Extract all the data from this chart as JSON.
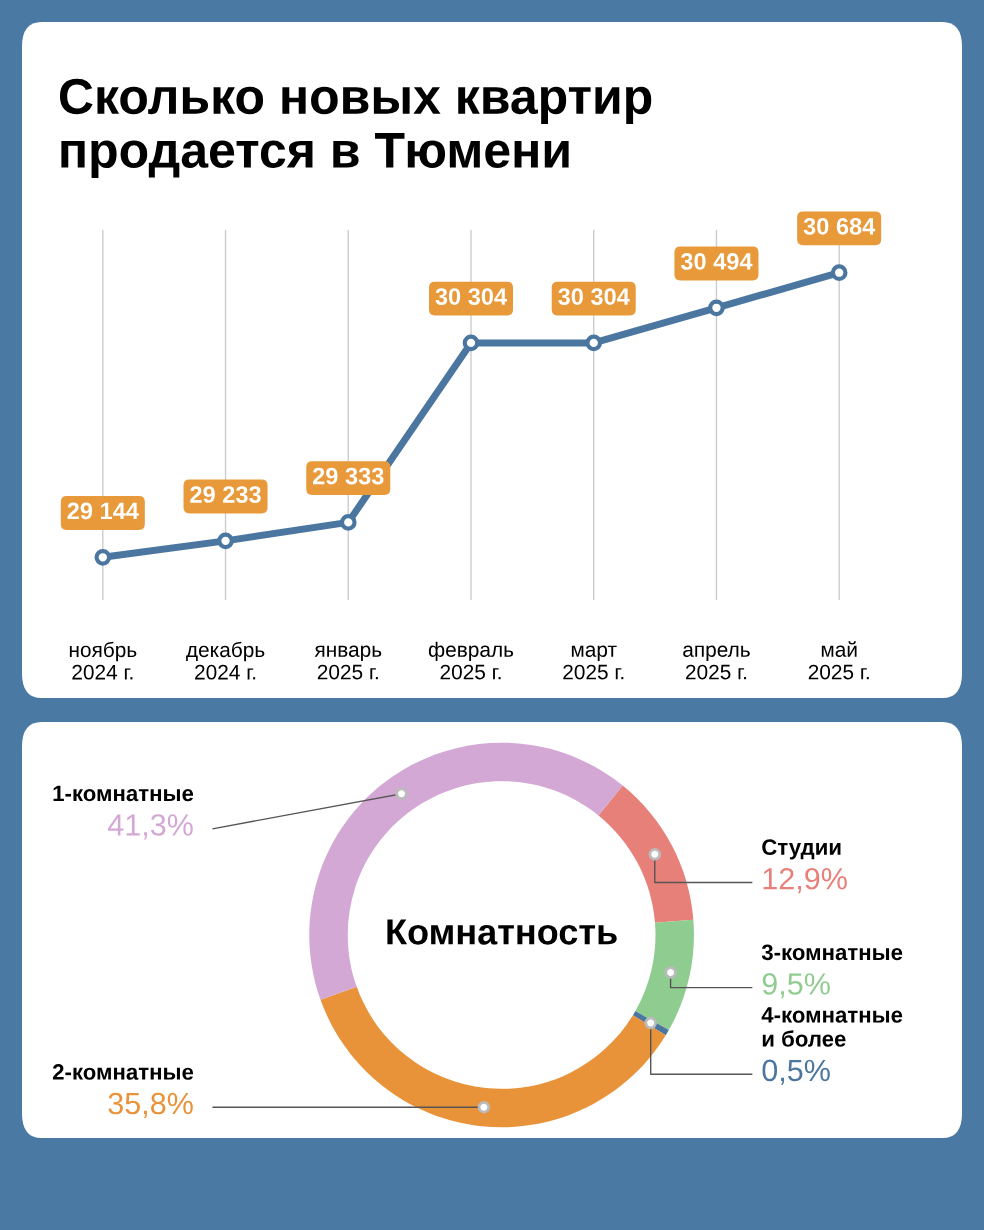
{
  "chart_data": [
    {
      "type": "line",
      "title": "Сколько новых квартир\nпродается в Тюмени",
      "categories": [
        "ноябрь\n2024 г.",
        "декабрь\n2024 г.",
        "январь\n2025 г.",
        "февраль\n2025 г.",
        "март\n2025 г.",
        "апрель\n2025 г.",
        "май\n2025 г."
      ],
      "values": [
        29144,
        29233,
        29333,
        30304,
        30304,
        30494,
        30684
      ],
      "value_labels": [
        "29 144",
        "29 233",
        "29 333",
        "30 304",
        "30 304",
        "30 494",
        "30 684"
      ],
      "color": "#4a76a0",
      "marker": "circle",
      "grid": "x",
      "tick_labels": "x"
    },
    {
      "type": "donut",
      "title": "Комнатность",
      "categories": [
        "Студии",
        "3-комнатные",
        "4-комнатные\nи более",
        "2-комнатные",
        "1-комнатные"
      ],
      "values": [
        12.9,
        9.5,
        0.5,
        35.8,
        41.3
      ],
      "value_labels": [
        "12,9%",
        "9,5%",
        "0,5%",
        "35,8%",
        "41,3%"
      ],
      "colors": [
        "#e8807a",
        "#8fcc8f",
        "#4a76a0",
        "#e8933a",
        "#d4a8d4"
      ]
    }
  ]
}
